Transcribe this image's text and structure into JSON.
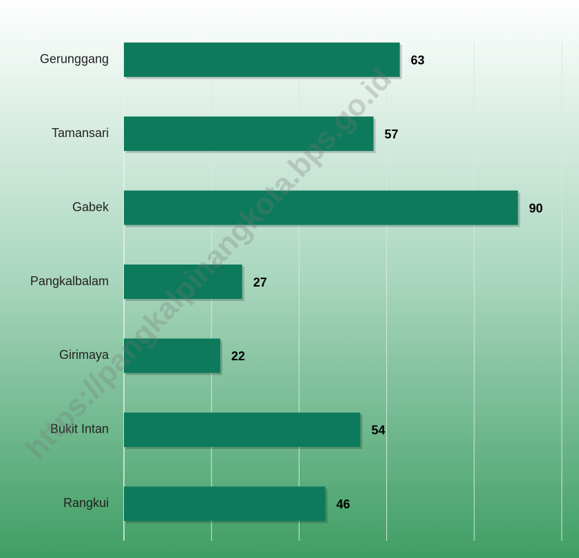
{
  "chart_data": {
    "type": "bar",
    "orientation": "horizontal",
    "categories": [
      "Gerunggang",
      "Tamansari",
      "Gabek",
      "Pangkalbalam",
      "Girimaya",
      "Bukit Intan",
      "Rangkui"
    ],
    "values": [
      63,
      57,
      90,
      27,
      22,
      54,
      46
    ],
    "color": "#0e7a5c",
    "xlim": [
      0,
      100
    ],
    "xticks": [
      0,
      20,
      40,
      60,
      80,
      100
    ],
    "grid": true,
    "watermark": "https://pangkalpinangkota.bps.go.id"
  }
}
